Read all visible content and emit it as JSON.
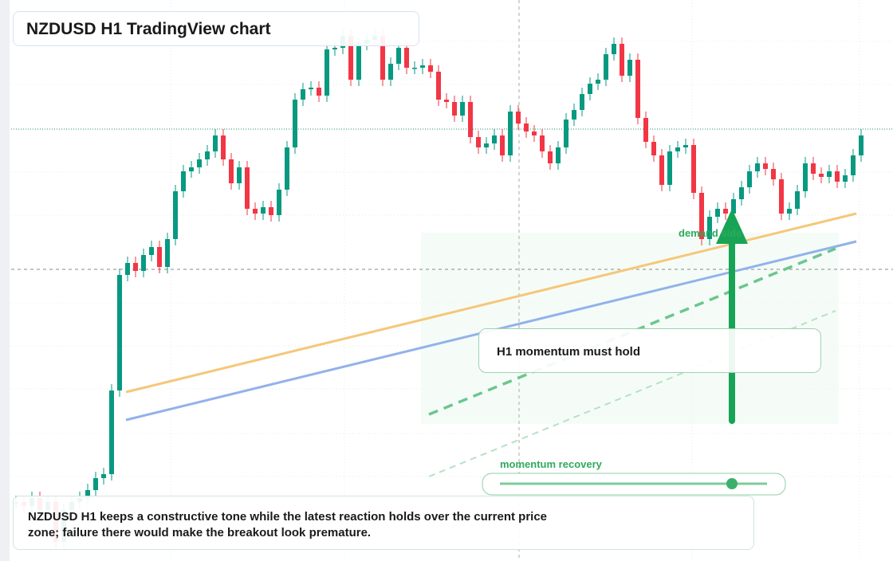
{
  "chart_data": {
    "type": "candlestick",
    "title": "NZDUSD H1 TradingView chart",
    "annotations": {
      "zone": "demand side",
      "callout": "H1 momentum must hold",
      "meter": "momentum recovery",
      "note": "NZDUSD H1 keeps a constructive tone while the latest reaction holds over the current price zone; failure there would make the breakout look premature."
    },
    "up_color": "#089981",
    "down_color": "#f23645",
    "ylim": [
      0,
      704
    ],
    "values": [
      74,
      69,
      79,
      64,
      74,
      24,
      64,
      74,
      79,
      89,
      104,
      109,
      214,
      359,
      374,
      364,
      384,
      394,
      369,
      404,
      464,
      489,
      494,
      504,
      514,
      534,
      504,
      474,
      494,
      442,
      436,
      444,
      434,
      466,
      519,
      579,
      592,
      594,
      584,
      642,
      644,
      659,
      604,
      649,
      654,
      659,
      604,
      624,
      644,
      619,
      619,
      622,
      614,
      579,
      576,
      559,
      576,
      532,
      519,
      524,
      534,
      509,
      564,
      549,
      539,
      534,
      514,
      499,
      519,
      554,
      566,
      586,
      599,
      604,
      636,
      649,
      609,
      629,
      556,
      526,
      509,
      472,
      514,
      519,
      522,
      462,
      404,
      432,
      442,
      436,
      454,
      469,
      489,
      499,
      492,
      479,
      436,
      442,
      464,
      499,
      486,
      482,
      489,
      476,
      484,
      509,
      534
    ]
  }
}
